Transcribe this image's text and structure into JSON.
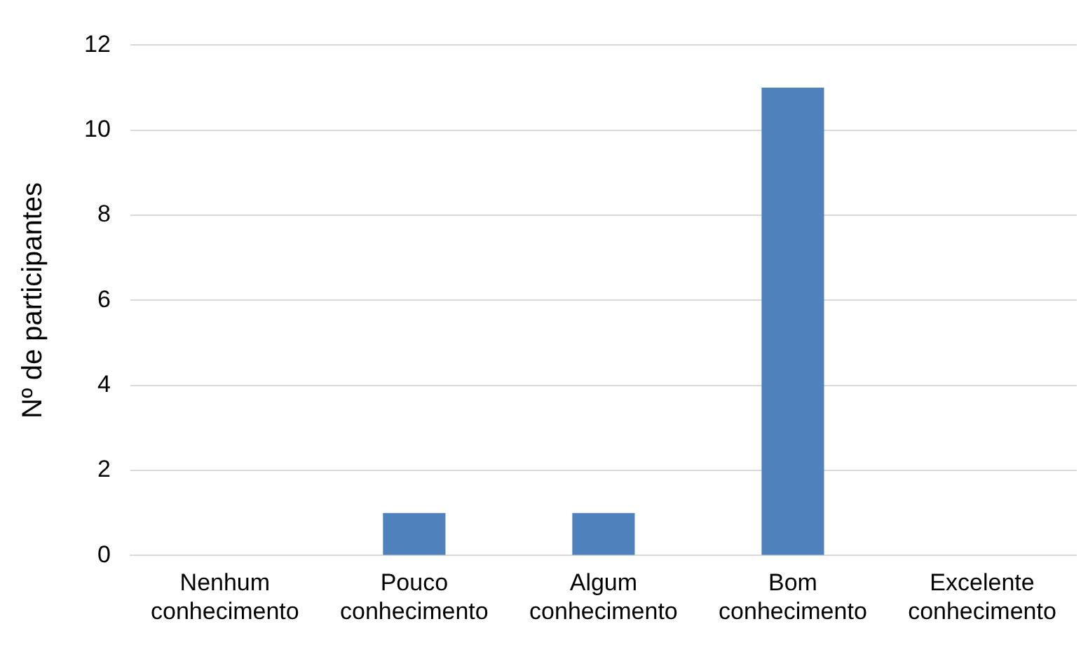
{
  "chart_data": {
    "type": "bar",
    "ylabel": "Nº de participantes",
    "categories": [
      "Nenhum conhecimento",
      "Pouco conhecimento",
      "Algum conhecimento",
      "Bom conhecimento",
      "Excelente conhecimento"
    ],
    "values": [
      0,
      1,
      1,
      11,
      0
    ],
    "color": "#4f81bd",
    "ylim": [
      0,
      12
    ],
    "yticks": [
      0,
      2,
      4,
      6,
      8,
      10,
      12
    ],
    "grid": "y",
    "legend": false
  }
}
